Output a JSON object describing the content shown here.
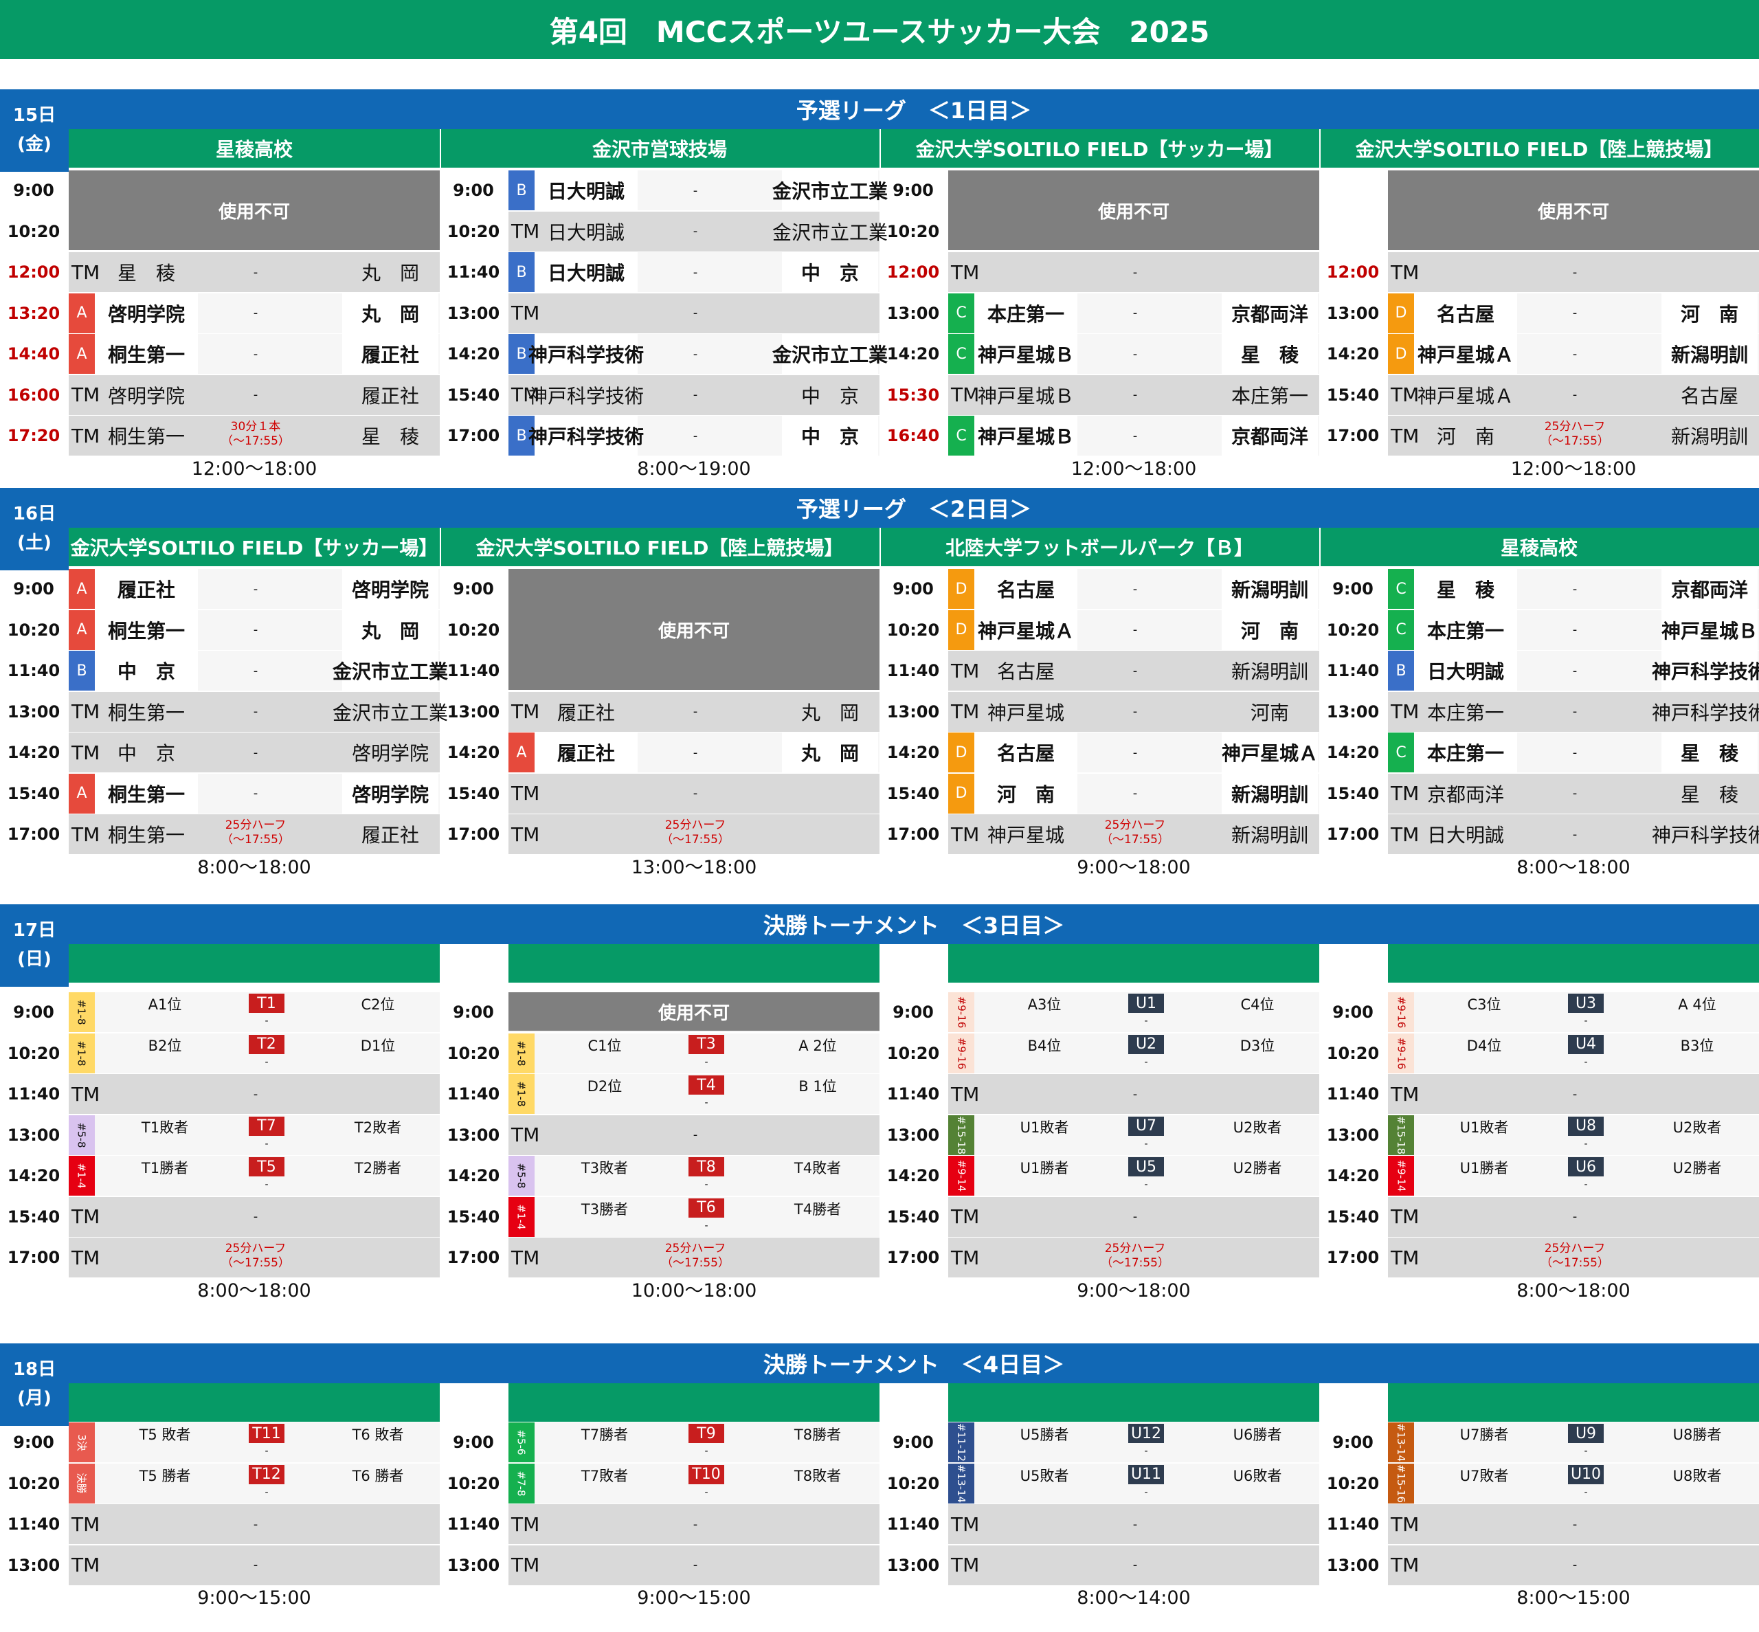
{
  "title": "第4回　MCCスポーツユースサッカー大会　2025",
  "colors": {
    "green": "#069a66",
    "blue": "#1168b5",
    "A": "#e64a3c",
    "B": "#3a6fc8",
    "C": "#15b04f",
    "D": "#f59a0f",
    "T": "#c81e1e",
    "U": "#2e3c4f"
  },
  "days": [
    {
      "day": "15日",
      "weekday": "(金)",
      "phase": "予選リーグ　＜1日目＞",
      "venues": [
        "星稜高校",
        "金沢市営球技場",
        "金沢大学SOLTILO FIELD【サッカー場】",
        "金沢大学SOLTILO FIELD【陸上競技場】"
      ],
      "hours": [
        "12:00～18:00",
        "8:00～19:00",
        "12:00～18:00",
        "12:00～18:00"
      ]
    },
    {
      "day": "16日",
      "weekday": "(土)",
      "phase": "予選リーグ　＜2日目＞",
      "venues": [
        "金沢大学SOLTILO FIELD【サッカー場】",
        "金沢大学SOLTILO FIELD【陸上競技場】",
        "北陸大学フットボールパーク【Ｂ】",
        "星稜高校"
      ],
      "hours": [
        "8:00～18:00",
        "13:00～18:00",
        "9:00～18:00",
        "8:00～18:00"
      ]
    },
    {
      "day": "17日",
      "weekday": "(日)",
      "phase": "決勝トーナメント　＜3日目＞",
      "hours": [
        "8:00～18:00",
        "10:00～18:00",
        "9:00～18:00",
        "8:00～18:00"
      ]
    },
    {
      "day": "18日",
      "weekday": "(月)",
      "phase": "決勝トーナメント　＜4日目＞",
      "hours": [
        "9:00～15:00",
        "9:00～15:00",
        "8:00～14:00",
        "8:00～15:00"
      ]
    }
  ],
  "labels": {
    "unavailable": "使用不可",
    "tm": "TM",
    "note30": "30分１本\n（～17:55）",
    "note25": "25分ハーフ\n（～17:55）",
    "dash": "-"
  },
  "d1": {
    "v1": {
      "times": [
        "9:00",
        "10:20",
        "12:00",
        "13:20",
        "14:40",
        "16:00",
        "17:20"
      ],
      "rows": [
        {
          "type": "tm",
          "h": "星　稜",
          "a": "丸　岡"
        },
        {
          "type": "g",
          "g": "A",
          "h": "啓明学院",
          "a": "丸　岡"
        },
        {
          "type": "g",
          "g": "A",
          "h": "桐生第一",
          "a": "履正社"
        },
        {
          "type": "tm",
          "h": "啓明学院",
          "a": "履正社"
        },
        {
          "type": "tm",
          "h": "桐生第一",
          "a": "星　稜",
          "note": "30"
        }
      ]
    },
    "v2": {
      "times": [
        "9:00",
        "10:20",
        "11:40",
        "13:00",
        "14:20",
        "15:40",
        "17:00"
      ],
      "rows": [
        {
          "type": "g",
          "g": "B",
          "h": "日大明誠",
          "a": "金沢市立工業"
        },
        {
          "type": "tm",
          "h": "日大明誠",
          "a": "金沢市立工業"
        },
        {
          "type": "g",
          "g": "B",
          "h": "日大明誠",
          "a": "中　京"
        },
        {
          "type": "tm",
          "h": "",
          "a": ""
        },
        {
          "type": "g",
          "g": "B",
          "h": "神戸科学技術",
          "a": "金沢市立工業"
        },
        {
          "type": "tm",
          "h": "神戸科学技術",
          "a": "中　京"
        },
        {
          "type": "g",
          "g": "B",
          "h": "神戸科学技術",
          "a": "中　京"
        }
      ]
    },
    "v3": {
      "times": [
        "9:00",
        "10:20",
        "12:00",
        "13:00",
        "14:20",
        "15:30",
        "16:40"
      ],
      "rows": [
        {
          "type": "tm",
          "h": "",
          "a": ""
        },
        {
          "type": "g",
          "g": "C",
          "h": "本庄第一",
          "a": "京都両洋"
        },
        {
          "type": "g",
          "g": "C",
          "h": "神戸星城Ｂ",
          "a": "星　稜"
        },
        {
          "type": "tm",
          "h": "神戸星城Ｂ",
          "a": "本庄第一"
        },
        {
          "type": "g",
          "g": "C",
          "h": "神戸星城Ｂ",
          "a": "京都両洋"
        }
      ]
    },
    "v4": {
      "times": [
        "",
        "",
        "12:00",
        "13:00",
        "14:20",
        "15:40",
        "17:00"
      ],
      "rows": [
        {
          "type": "tm",
          "h": "",
          "a": ""
        },
        {
          "type": "g",
          "g": "D",
          "h": "名古屋",
          "a": "河　南"
        },
        {
          "type": "g",
          "g": "D",
          "h": "神戸星城Ａ",
          "a": "新潟明訓"
        },
        {
          "type": "tm",
          "h": "神戸星城Ａ",
          "a": "名古屋"
        },
        {
          "type": "tm",
          "h": "河　南",
          "a": "新潟明訓",
          "note": "25"
        }
      ]
    }
  },
  "d2": {
    "times": [
      "9:00",
      "10:20",
      "11:40",
      "13:00",
      "14:20",
      "15:40",
      "17:00"
    ],
    "v1": [
      {
        "type": "g",
        "g": "A",
        "h": "履正社",
        "a": "啓明学院"
      },
      {
        "type": "g",
        "g": "A",
        "h": "桐生第一",
        "a": "丸　岡"
      },
      {
        "type": "g",
        "g": "B",
        "h": "中　京",
        "a": "金沢市立工業"
      },
      {
        "type": "tm",
        "h": "桐生第一",
        "a": "金沢市立工業"
      },
      {
        "type": "tm",
        "h": "中　京",
        "a": "啓明学院"
      },
      {
        "type": "g",
        "g": "A",
        "h": "桐生第一",
        "a": "啓明学院"
      },
      {
        "type": "tm",
        "h": "桐生第一",
        "a": "履正社",
        "note": "25"
      }
    ],
    "v2": [
      {
        "type": "tm",
        "h": "履正社",
        "a": "丸　岡"
      },
      {
        "type": "g",
        "g": "A",
        "h": "履正社",
        "a": "丸　岡"
      },
      {
        "type": "tm",
        "h": "",
        "a": ""
      },
      {
        "type": "tm",
        "h": "",
        "a": "",
        "note": "25"
      }
    ],
    "v3": [
      {
        "type": "g",
        "g": "D",
        "h": "名古屋",
        "a": "新潟明訓"
      },
      {
        "type": "g",
        "g": "D",
        "h": "神戸星城Ａ",
        "a": "河　南"
      },
      {
        "type": "tm",
        "h": "名古屋",
        "a": "新潟明訓"
      },
      {
        "type": "tm",
        "h": "神戸星城",
        "a": "河南"
      },
      {
        "type": "g",
        "g": "D",
        "h": "名古屋",
        "a": "神戸星城Ａ"
      },
      {
        "type": "g",
        "g": "D",
        "h": "河　南",
        "a": "新潟明訓"
      },
      {
        "type": "tm",
        "h": "神戸星城",
        "a": "新潟明訓",
        "note": "25"
      }
    ],
    "v4": [
      {
        "type": "g",
        "g": "C",
        "h": "星　稜",
        "a": "京都両洋"
      },
      {
        "type": "g",
        "g": "C",
        "h": "本庄第一",
        "a": "神戸星城Ｂ"
      },
      {
        "type": "g",
        "g": "B",
        "h": "日大明誠",
        "a": "神戸科学技術"
      },
      {
        "type": "tm",
        "h": "本庄第一",
        "a": "神戸科学技術"
      },
      {
        "type": "g",
        "g": "C",
        "h": "本庄第一",
        "a": "星　稜"
      },
      {
        "type": "tm",
        "h": "京都両洋",
        "a": "星　稜"
      },
      {
        "type": "tm",
        "h": "日大明誠",
        "a": "神戸科学技術"
      }
    ]
  },
  "d3": {
    "times": [
      "9:00",
      "10:20",
      "11:40",
      "13:00",
      "14:20",
      "15:40",
      "17:00"
    ],
    "v1": [
      {
        "row": 0,
        "tag": "#1-8",
        "tc": "#ffd966",
        "h": "A1位",
        "code": "T1",
        "a": "C2位"
      },
      {
        "row": 1,
        "tag": "#1-8",
        "tc": "#ffd966",
        "h": "B2位",
        "code": "T2",
        "a": "D1位"
      },
      {
        "row": 3,
        "tag": "#5-8",
        "tc": "#d9c3ef",
        "h": "T1敗者",
        "code": "T7",
        "a": "T2敗者"
      },
      {
        "row": 4,
        "tag": "#1-4",
        "tc": "#e60012",
        "h": "T1勝者",
        "code": "T5",
        "a": "T2勝者"
      }
    ],
    "v2": [
      {
        "row": 1,
        "tag": "#1-8",
        "tc": "#ffd966",
        "h": "C1位",
        "code": "T3",
        "a": "A 2位"
      },
      {
        "row": 2,
        "tag": "#1-8",
        "tc": "#ffd966",
        "h": "D2位",
        "code": "T4",
        "a": "B 1位"
      },
      {
        "row": 4,
        "tag": "#5-8",
        "tc": "#d9c3ef",
        "h": "T3敗者",
        "code": "T8",
        "a": "T4敗者"
      },
      {
        "row": 5,
        "tag": "#1-4",
        "tc": "#e60012",
        "h": "T3勝者",
        "code": "T6",
        "a": "T4勝者"
      }
    ],
    "v3": [
      {
        "row": 0,
        "tag": "#9-16",
        "tc": "#fbe3d6",
        "h": "A3位",
        "code": "U1",
        "a": "C4位"
      },
      {
        "row": 1,
        "tag": "#9-16",
        "tc": "#fbe3d6",
        "h": "B4位",
        "code": "U2",
        "a": "D3位"
      },
      {
        "row": 3,
        "tag": "#15-18",
        "tc": "#548235",
        "h": "U1敗者",
        "code": "U7",
        "a": "U2敗者"
      },
      {
        "row": 4,
        "tag": "#9-14",
        "tc": "#e60012",
        "h": "U1勝者",
        "code": "U5",
        "a": "U2勝者"
      }
    ],
    "v4": [
      {
        "row": 0,
        "tag": "#9-16",
        "tc": "#fbe3d6",
        "h": "C3位",
        "code": "U3",
        "a": "A 4位"
      },
      {
        "row": 1,
        "tag": "#9-16",
        "tc": "#fbe3d6",
        "h": "D4位",
        "code": "U4",
        "a": "B3位"
      },
      {
        "row": 3,
        "tag": "#15-18",
        "tc": "#548235",
        "h": "U1敗者",
        "code": "U8",
        "a": "U2敗者"
      },
      {
        "row": 4,
        "tag": "#9-14",
        "tc": "#e60012",
        "h": "U1勝者",
        "code": "U6",
        "a": "U2勝者"
      }
    ]
  },
  "d4": {
    "times": [
      "9:00",
      "10:20",
      "11:40",
      "13:00"
    ],
    "v1": [
      {
        "row": 0,
        "tag": "3決",
        "tc": "#e85a4f",
        "h": "T5 敗者",
        "code": "T11",
        "a": "T6 敗者"
      },
      {
        "row": 1,
        "tag": "決勝",
        "tc": "#e85a4f",
        "h": "T5 勝者",
        "code": "T12",
        "a": "T6 勝者"
      }
    ],
    "v2": [
      {
        "row": 0,
        "tag": "#5-6",
        "tc": "#15b04f",
        "h": "T7勝者",
        "code": "T9",
        "a": "T8勝者"
      },
      {
        "row": 1,
        "tag": "#7-8",
        "tc": "#15b04f",
        "h": "T7敗者",
        "code": "T10",
        "a": "T8敗者"
      }
    ],
    "v3": [
      {
        "row": 0,
        "tag": "#11-12",
        "tc": "#2e4f8f",
        "h": "U5勝者",
        "code": "U12",
        "a": "U6勝者"
      },
      {
        "row": 1,
        "tag": "#13-14",
        "tc": "#2e4f8f",
        "h": "U5敗者",
        "code": "U11",
        "a": "U6敗者"
      }
    ],
    "v4": [
      {
        "row": 0,
        "tag": "#13-14",
        "tc": "#c55a11",
        "h": "U7勝者",
        "code": "U9",
        "a": "U8勝者"
      },
      {
        "row": 1,
        "tag": "#15-16",
        "tc": "#c55a11",
        "h": "U7敗者",
        "code": "U10",
        "a": "U8敗者"
      }
    ]
  }
}
